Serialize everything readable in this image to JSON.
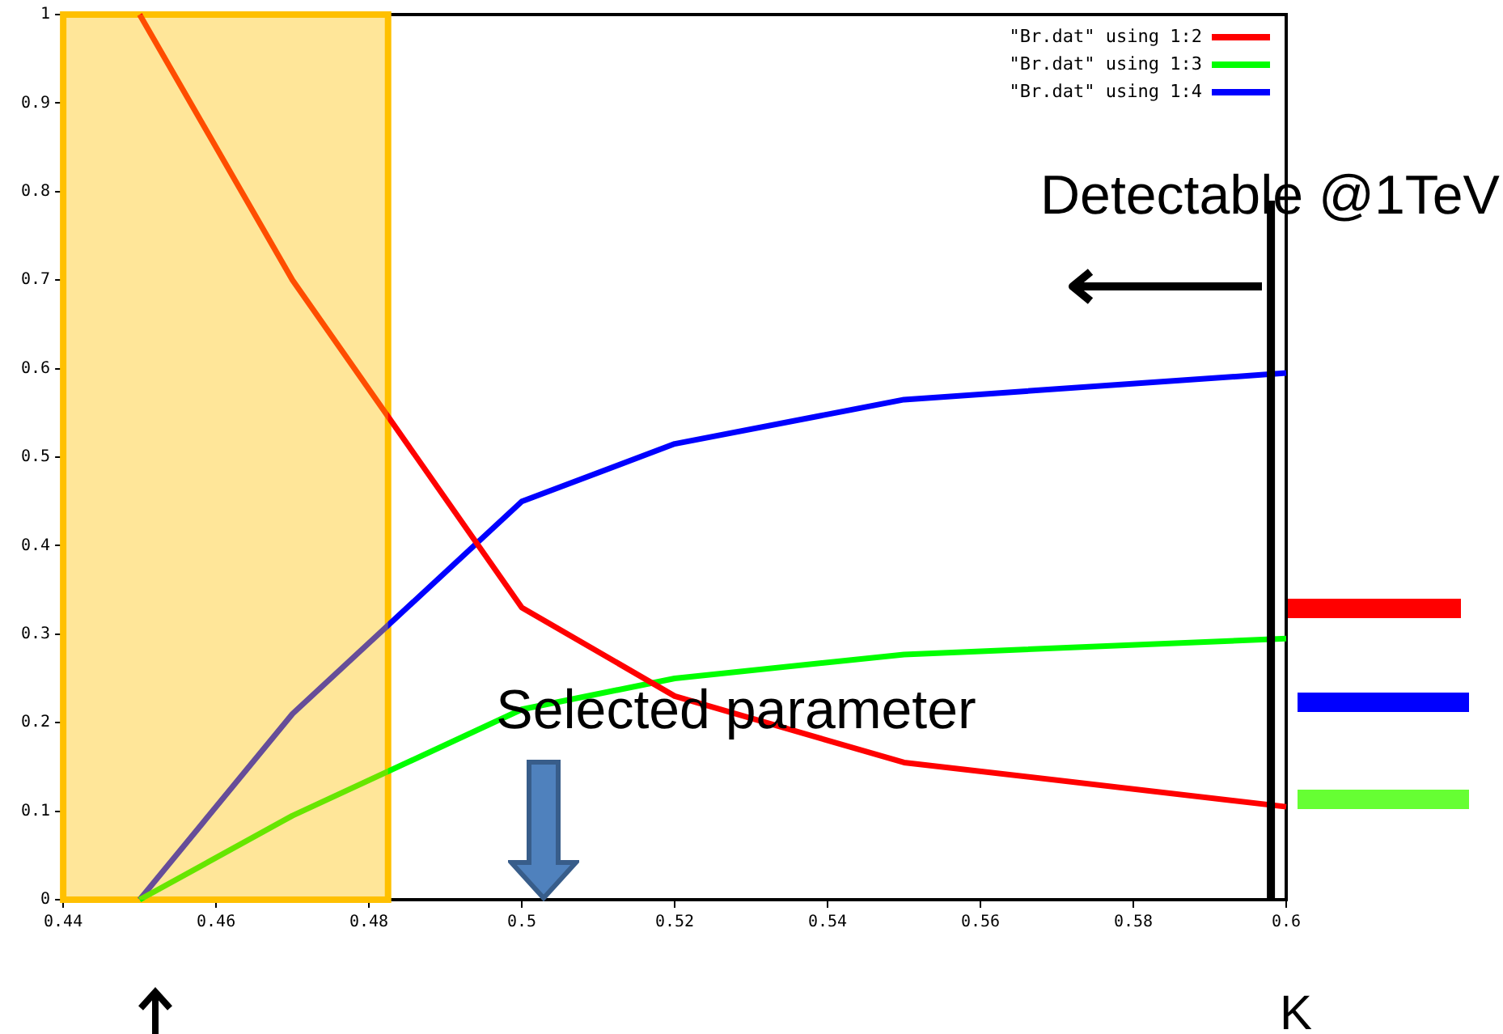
{
  "chart_data": {
    "type": "line",
    "xlabel": "K",
    "x": [
      0.45,
      0.47,
      0.5,
      0.52,
      0.55,
      0.6
    ],
    "series": [
      {
        "name": "\"Br.dat\" using 1:2",
        "color": "#ff0000",
        "values": [
          1.0,
          0.7,
          0.33,
          0.23,
          0.155,
          0.105
        ]
      },
      {
        "name": "\"Br.dat\" using 1:3",
        "color": "#00ff00",
        "values": [
          0,
          0.095,
          0.215,
          0.25,
          0.277,
          0.295
        ]
      },
      {
        "name": "\"Br.dat\" using 1:4",
        "color": "#0000ff",
        "values": [
          0,
          0.21,
          0.45,
          0.515,
          0.565,
          0.595
        ]
      }
    ],
    "xlim": [
      0.44,
      0.6
    ],
    "xticks": [
      0.44,
      0.46,
      0.48,
      0.5,
      0.52,
      0.54,
      0.56,
      0.58,
      0.6
    ],
    "ylim": [
      0,
      1
    ],
    "yticks": [
      0,
      0.1,
      0.2,
      0.3,
      0.4,
      0.5,
      0.6,
      0.7,
      0.8,
      0.9,
      1
    ],
    "grid": false,
    "legend": "top right",
    "marker": "none",
    "line_style": "solid",
    "bands": [
      {
        "axis": "x",
        "from": 0.44,
        "to": 0.4825,
        "color": "#ffc000"
      }
    ],
    "ref_lines": [
      {
        "axis": "x",
        "value": 0.598,
        "label": "Detectable @1TeV",
        "color": "#000000"
      }
    ],
    "annotations": [
      "Selected parameter"
    ]
  }
}
